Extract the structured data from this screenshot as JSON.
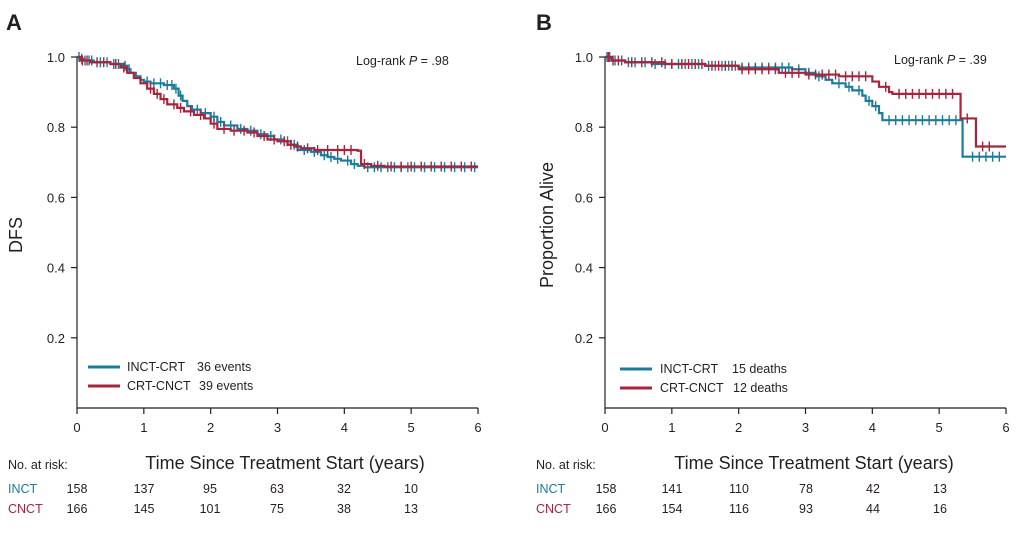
{
  "colors": {
    "inct": "#1a7c9c",
    "cnct": "#a8233c",
    "axis": "#231f20"
  },
  "chart_data": [
    {
      "type": "line",
      "panel": "A",
      "xlabel": "Time Since Treatment Start (years)",
      "ylabel": "DFS",
      "xlim": [
        0,
        6
      ],
      "ylim": [
        0,
        1.0
      ],
      "xticks": [
        "0",
        "1",
        "2",
        "3",
        "4",
        "5",
        "6"
      ],
      "yticks": [
        "0.2",
        "0.4",
        "0.6",
        "0.8",
        "1.0"
      ],
      "annotation_prefix": "Log-rank ",
      "annotation_p": "P",
      "annotation_value": " = .98",
      "legend_placement": "bottom-left",
      "series": [
        {
          "key": "inct",
          "name": "INCT-CRT",
          "events_label": "36 events",
          "steps": [
            [
              0,
              1.0
            ],
            [
              0.05,
              0.995
            ],
            [
              0.1,
              0.99
            ],
            [
              0.25,
              0.985
            ],
            [
              0.5,
              0.98
            ],
            [
              0.68,
              0.975
            ],
            [
              0.75,
              0.965
            ],
            [
              0.8,
              0.955
            ],
            [
              0.88,
              0.945
            ],
            [
              0.95,
              0.935
            ],
            [
              1.0,
              0.93
            ],
            [
              1.1,
              0.925
            ],
            [
              1.3,
              0.92
            ],
            [
              1.45,
              0.91
            ],
            [
              1.52,
              0.89
            ],
            [
              1.58,
              0.875
            ],
            [
              1.65,
              0.86
            ],
            [
              1.72,
              0.85
            ],
            [
              1.85,
              0.84
            ],
            [
              2.0,
              0.83
            ],
            [
              2.1,
              0.815
            ],
            [
              2.2,
              0.805
            ],
            [
              2.4,
              0.795
            ],
            [
              2.55,
              0.79
            ],
            [
              2.7,
              0.78
            ],
            [
              2.85,
              0.775
            ],
            [
              2.95,
              0.765
            ],
            [
              3.1,
              0.76
            ],
            [
              3.2,
              0.75
            ],
            [
              3.3,
              0.735
            ],
            [
              3.5,
              0.73
            ],
            [
              3.65,
              0.72
            ],
            [
              3.75,
              0.715
            ],
            [
              3.85,
              0.71
            ],
            [
              3.95,
              0.705
            ],
            [
              4.1,
              0.695
            ],
            [
              4.2,
              0.69
            ],
            [
              4.3,
              0.686
            ],
            [
              6.0,
              0.686
            ]
          ],
          "censors": [
            0.03,
            0.07,
            0.12,
            0.18,
            0.22,
            0.35,
            0.45,
            0.55,
            0.62,
            0.72,
            0.78,
            1.05,
            1.15,
            1.25,
            1.35,
            1.42,
            1.48,
            1.55,
            1.8,
            1.92,
            2.05,
            2.15,
            2.3,
            2.45,
            2.6,
            2.75,
            2.9,
            3.05,
            3.15,
            3.25,
            3.4,
            3.55,
            3.7,
            3.8,
            3.9,
            4.05,
            4.15,
            4.35,
            4.45,
            4.55,
            4.65,
            4.75,
            4.85,
            4.95,
            5.05,
            5.2,
            5.35,
            5.5,
            5.65,
            5.8,
            5.95
          ]
        },
        {
          "key": "cnct",
          "name": "CRT-CNCT",
          "events_label": "39 events",
          "steps": [
            [
              0,
              1.0
            ],
            [
              0.05,
              0.99
            ],
            [
              0.2,
              0.985
            ],
            [
              0.5,
              0.98
            ],
            [
              0.65,
              0.97
            ],
            [
              0.75,
              0.955
            ],
            [
              0.85,
              0.94
            ],
            [
              0.95,
              0.925
            ],
            [
              1.05,
              0.91
            ],
            [
              1.15,
              0.895
            ],
            [
              1.25,
              0.88
            ],
            [
              1.35,
              0.865
            ],
            [
              1.5,
              0.855
            ],
            [
              1.6,
              0.845
            ],
            [
              1.75,
              0.835
            ],
            [
              1.9,
              0.825
            ],
            [
              2.0,
              0.81
            ],
            [
              2.1,
              0.795
            ],
            [
              2.3,
              0.79
            ],
            [
              2.55,
              0.785
            ],
            [
              2.7,
              0.775
            ],
            [
              2.85,
              0.765
            ],
            [
              3.0,
              0.76
            ],
            [
              3.15,
              0.75
            ],
            [
              3.25,
              0.745
            ],
            [
              3.35,
              0.74
            ],
            [
              3.55,
              0.735
            ],
            [
              4.2,
              0.733
            ],
            [
              4.25,
              0.695
            ],
            [
              4.4,
              0.69
            ],
            [
              4.6,
              0.688
            ],
            [
              6.0,
              0.688
            ]
          ],
          "censors": [
            0.08,
            0.15,
            0.3,
            0.4,
            0.58,
            0.7,
            1.1,
            1.2,
            1.3,
            1.45,
            1.55,
            1.7,
            1.85,
            2.05,
            2.2,
            2.35,
            2.5,
            2.65,
            2.8,
            2.95,
            3.1,
            3.2,
            3.3,
            3.45,
            3.6,
            3.75,
            3.9,
            4.0,
            4.1,
            4.3,
            4.5,
            4.7,
            4.85,
            5.0,
            5.15,
            5.3,
            5.45,
            5.6,
            5.75,
            5.9
          ]
        }
      ],
      "risk_table": {
        "header": "No. at risk:",
        "rows": [
          {
            "key": "inct",
            "label": "INCT",
            "values": [
              "158",
              "137",
              "95",
              "63",
              "32",
              "10"
            ]
          },
          {
            "key": "cnct",
            "label": "CNCT",
            "values": [
              "166",
              "145",
              "101",
              "75",
              "38",
              "13"
            ]
          }
        ]
      }
    },
    {
      "type": "line",
      "panel": "B",
      "xlabel": "Time Since Treatment Start (years)",
      "ylabel": "Proportion Alive",
      "xlim": [
        0,
        6
      ],
      "ylim": [
        0,
        1.0
      ],
      "xticks": [
        "0",
        "1",
        "2",
        "3",
        "4",
        "5",
        "6"
      ],
      "yticks": [
        "0.2",
        "0.4",
        "0.6",
        "0.8",
        "1.0"
      ],
      "annotation_prefix": "Log-rank ",
      "annotation_p": "P",
      "annotation_value": " = .39",
      "legend_placement": "bottom-left",
      "series": [
        {
          "key": "inct",
          "name": "INCT-CRT",
          "events_label": "15 deaths",
          "steps": [
            [
              0,
              1.0
            ],
            [
              0.1,
              0.99
            ],
            [
              0.3,
              0.985
            ],
            [
              0.7,
              0.98
            ],
            [
              1.5,
              0.975
            ],
            [
              2.0,
              0.97
            ],
            [
              2.8,
              0.965
            ],
            [
              3.0,
              0.955
            ],
            [
              3.15,
              0.945
            ],
            [
              3.3,
              0.935
            ],
            [
              3.4,
              0.925
            ],
            [
              3.6,
              0.915
            ],
            [
              3.7,
              0.905
            ],
            [
              3.85,
              0.89
            ],
            [
              3.9,
              0.875
            ],
            [
              4.0,
              0.86
            ],
            [
              4.1,
              0.84
            ],
            [
              4.15,
              0.82
            ],
            [
              5.3,
              0.82
            ],
            [
              5.35,
              0.716
            ],
            [
              6.0,
              0.716
            ]
          ],
          "censors": [
            0.03,
            0.07,
            0.15,
            0.25,
            0.35,
            0.45,
            0.6,
            0.75,
            0.9,
            1.0,
            1.1,
            1.2,
            1.3,
            1.4,
            1.55,
            1.65,
            1.75,
            1.85,
            1.95,
            2.05,
            2.15,
            2.25,
            2.35,
            2.45,
            2.55,
            2.65,
            2.75,
            2.9,
            3.05,
            3.2,
            3.5,
            3.65,
            3.8,
            3.95,
            4.05,
            4.25,
            4.35,
            4.45,
            4.55,
            4.65,
            4.75,
            4.85,
            4.95,
            5.05,
            5.15,
            5.25,
            5.5,
            5.6,
            5.7,
            5.8,
            5.9
          ]
        },
        {
          "key": "cnct",
          "name": "CRT-CNCT",
          "events_label": "12 deaths",
          "steps": [
            [
              0,
              1.0
            ],
            [
              0.1,
              0.99
            ],
            [
              0.3,
              0.985
            ],
            [
              0.9,
              0.98
            ],
            [
              1.5,
              0.975
            ],
            [
              2.0,
              0.965
            ],
            [
              2.6,
              0.955
            ],
            [
              3.0,
              0.95
            ],
            [
              3.5,
              0.945
            ],
            [
              4.0,
              0.93
            ],
            [
              4.1,
              0.915
            ],
            [
              4.25,
              0.9
            ],
            [
              4.3,
              0.895
            ],
            [
              5.3,
              0.895
            ],
            [
              5.32,
              0.825
            ],
            [
              5.5,
              0.825
            ],
            [
              5.55,
              0.745
            ],
            [
              6.0,
              0.745
            ]
          ],
          "censors": [
            0.05,
            0.12,
            0.2,
            0.4,
            0.55,
            0.7,
            0.85,
            1.0,
            1.15,
            1.25,
            1.35,
            1.45,
            1.6,
            1.7,
            1.8,
            1.9,
            2.05,
            2.15,
            2.25,
            2.35,
            2.45,
            2.55,
            2.7,
            2.8,
            2.9,
            3.05,
            3.15,
            3.25,
            3.35,
            3.45,
            3.6,
            3.7,
            3.8,
            3.9,
            4.2,
            4.4,
            4.5,
            4.6,
            4.7,
            4.8,
            4.9,
            5.0,
            5.1,
            5.2,
            5.42,
            5.65,
            5.75
          ]
        }
      ],
      "risk_table": {
        "header": "No. at risk:",
        "rows": [
          {
            "key": "inct",
            "label": "INCT",
            "values": [
              "158",
              "141",
              "110",
              "78",
              "42",
              "13"
            ]
          },
          {
            "key": "cnct",
            "label": "CNCT",
            "values": [
              "166",
              "154",
              "116",
              "93",
              "44",
              "16"
            ]
          }
        ]
      }
    }
  ]
}
